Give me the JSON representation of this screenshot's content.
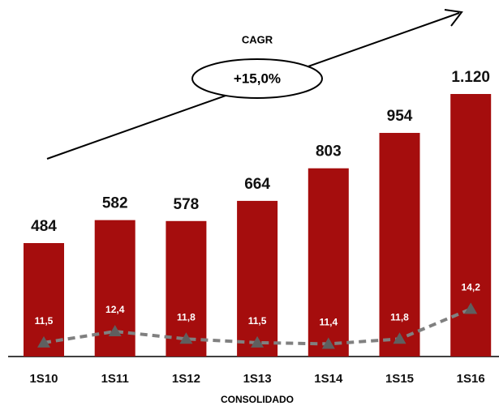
{
  "chart_data": {
    "type": "bar",
    "categories": [
      "1S10",
      "1S11",
      "1S12",
      "1S13",
      "1S14",
      "1S15",
      "1S16"
    ],
    "values": [
      484,
      582,
      578,
      664,
      803,
      954,
      1120
    ],
    "value_labels": [
      "484",
      "582",
      "578",
      "664",
      "803",
      "954",
      "1.120"
    ],
    "color": "#a50d0d",
    "line": {
      "type": "line",
      "values": [
        11.5,
        12.4,
        11.8,
        11.5,
        11.4,
        11.8,
        14.2
      ],
      "value_labels": [
        "11,5",
        "12,4",
        "11,8",
        "11,5",
        "11,4",
        "11,8",
        "14,2"
      ],
      "color": "#808080",
      "marker_color": "#5f5f5f"
    },
    "annotations": {
      "cagr_title": "CAGR",
      "cagr_value": "+15,0%"
    },
    "x_label": "CONSOLIDADO"
  }
}
